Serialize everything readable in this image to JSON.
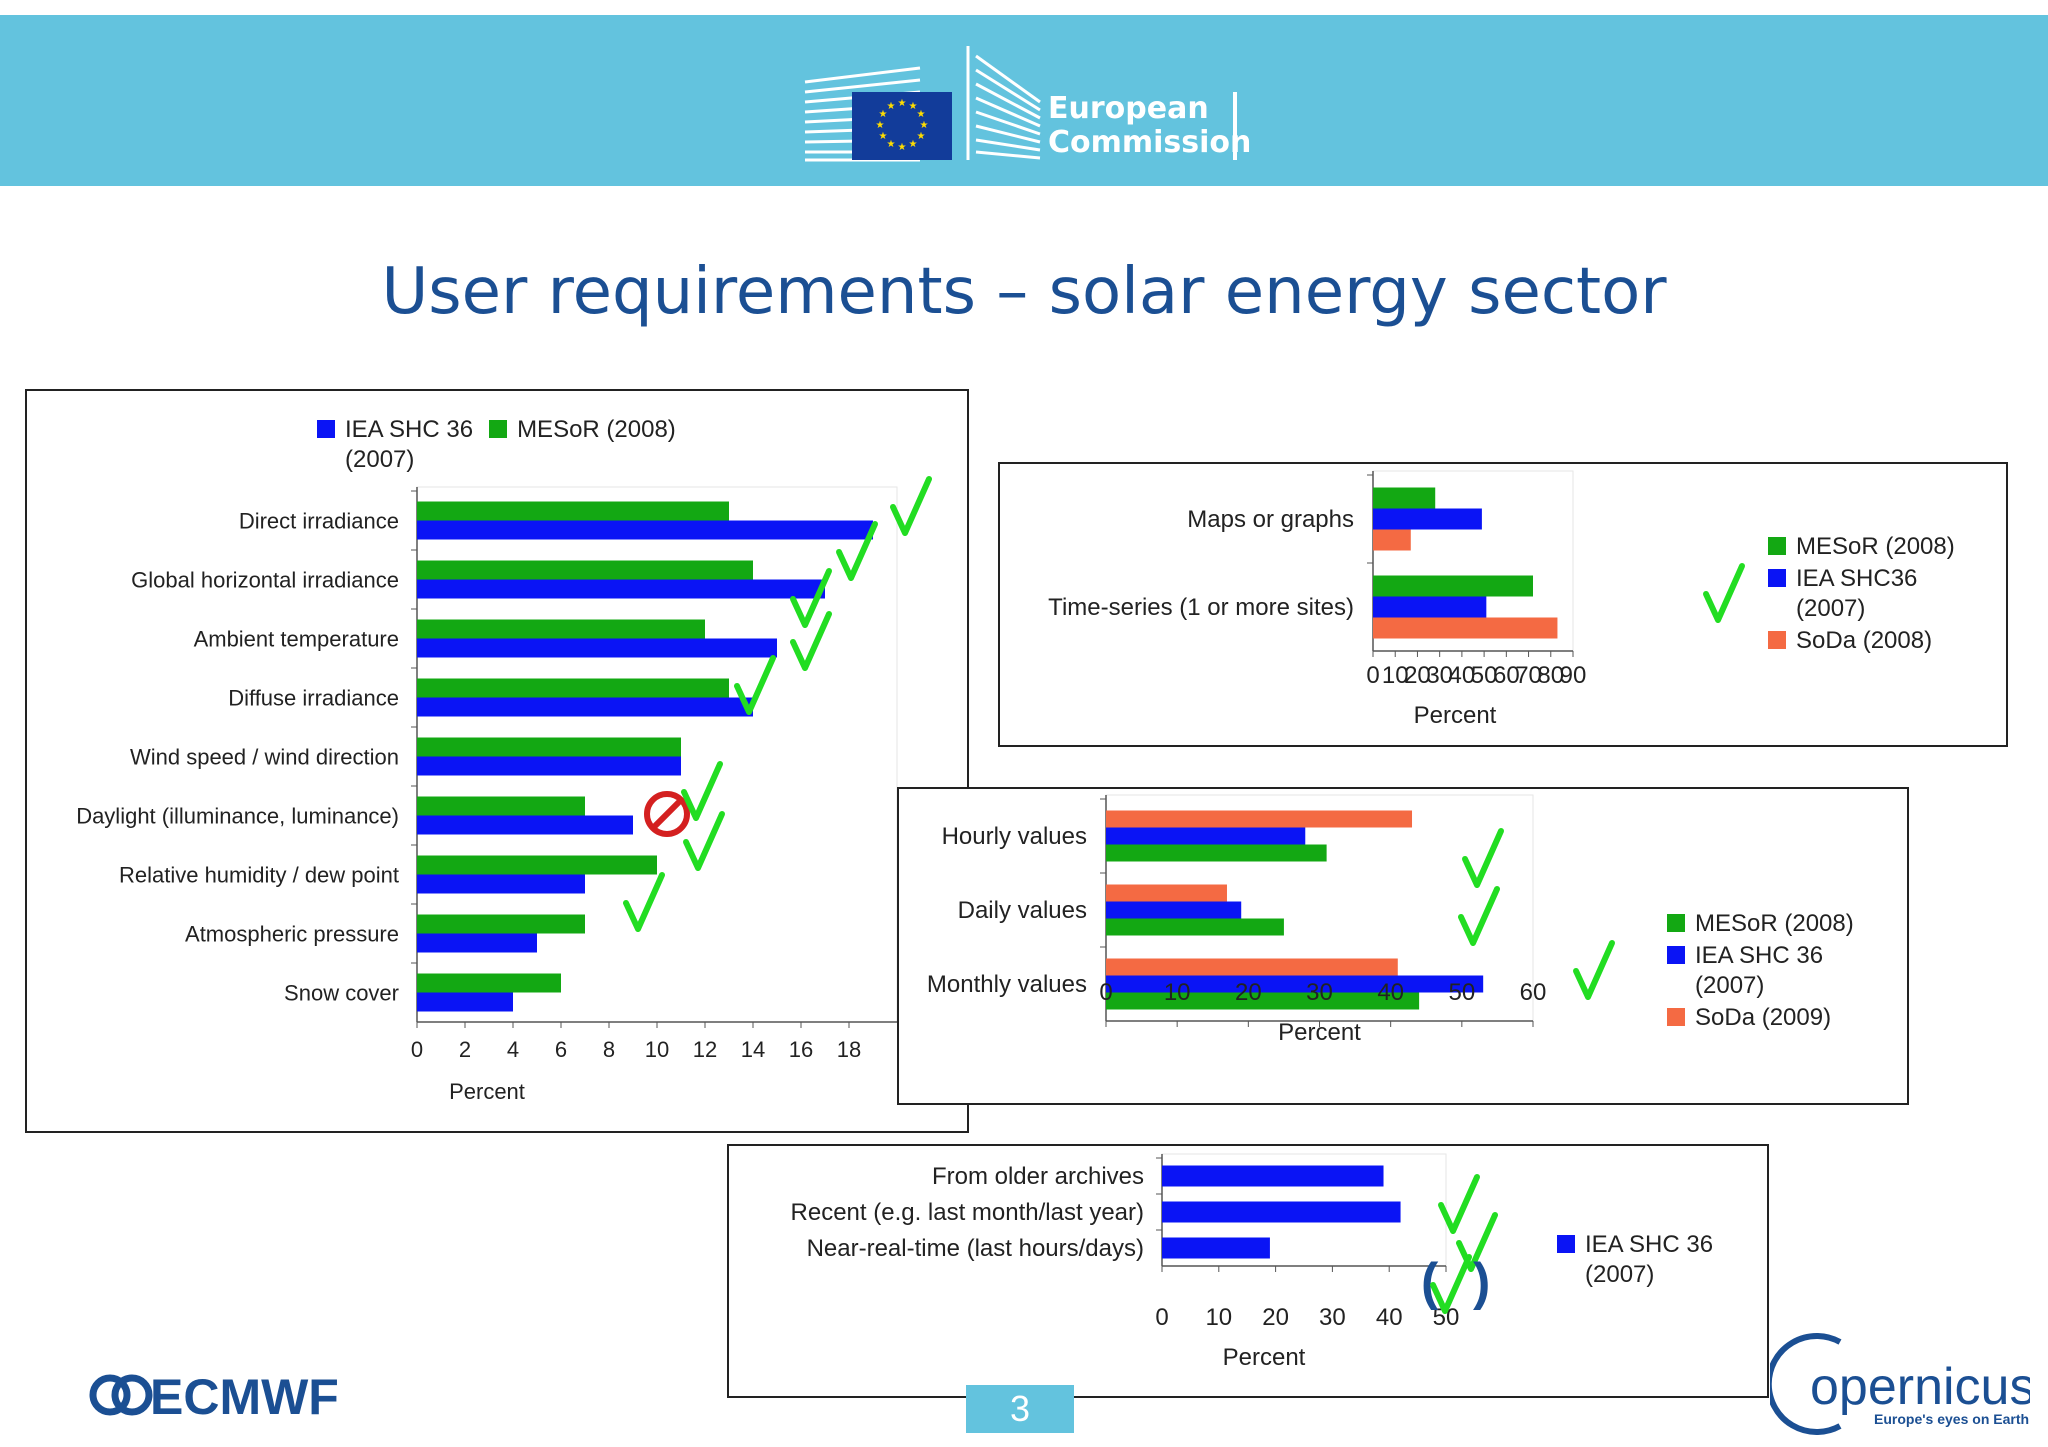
{
  "header": {
    "org_name_line1": "European",
    "org_name_line2": "Commission",
    "banner_color": "#63c3de"
  },
  "slide": {
    "title": "User requirements – solar energy sector",
    "page_number": "3"
  },
  "logos": {
    "left": "ECMWF",
    "right_name": "opernicus",
    "right_tagline": "Europe's eyes on Earth"
  },
  "colors": {
    "green": "#13a813",
    "blue": "#0a14f5",
    "orange": "#f46a43",
    "check": "#22dd22",
    "title": "#1b4f93"
  },
  "icons": {
    "check": "check-icon",
    "prohibited": "prohibited-icon"
  },
  "chart_data": [
    {
      "id": "parameters",
      "type": "bar",
      "orientation": "horizontal",
      "xlabel": "Percent",
      "xlim": [
        0,
        20
      ],
      "xticks": [
        "0",
        "2",
        "4",
        "6",
        "8",
        "10",
        "12",
        "14",
        "16",
        "18"
      ],
      "categories": [
        "Direct irradiance",
        "Global horizontal irradiance",
        "Ambient temperature",
        "Diffuse irradiance",
        "Wind speed / wind direction",
        "Daylight (illuminance, luminance)",
        "Relative humidity / dew point",
        "Atmospheric pressure",
        "Snow cover"
      ],
      "series": [
        {
          "name": "MESoR (2008)",
          "color": "#13a813",
          "values": [
            13,
            14,
            12,
            13,
            11,
            7,
            10,
            7,
            6
          ]
        },
        {
          "name": "IEA SHC 36\n(2007)",
          "color": "#0a14f5",
          "values": [
            19,
            17,
            15,
            14,
            11,
            9,
            7,
            5,
            4
          ]
        }
      ],
      "legend": [
        {
          "name": "IEA SHC 36\n(2007)",
          "color": "#0a14f5"
        },
        {
          "name": "MESoR (2008)",
          "color": "#13a813"
        }
      ],
      "marks": [
        "check",
        "check",
        "check",
        "check",
        "check",
        "prohibited",
        "check",
        "check",
        "check"
      ]
    },
    {
      "id": "format",
      "type": "bar",
      "orientation": "horizontal",
      "xlabel": "Percent",
      "xlim": [
        0,
        90
      ],
      "xticks": [
        "0",
        "10",
        "20",
        "30",
        "40",
        "50",
        "60",
        "70",
        "80",
        "90"
      ],
      "categories": [
        "Maps or graphs",
        "Time-series (1 or more sites)"
      ],
      "series": [
        {
          "name": "MESoR (2008)",
          "color": "#13a813",
          "values": [
            28,
            72
          ]
        },
        {
          "name": "IEA SHC36\n(2007)",
          "color": "#0a14f5",
          "values": [
            49,
            51
          ]
        },
        {
          "name": "SoDa (2008)",
          "color": "#f46a43",
          "values": [
            17,
            83
          ]
        }
      ],
      "marks": [
        "",
        "check"
      ]
    },
    {
      "id": "resolution",
      "type": "bar",
      "orientation": "horizontal",
      "xlabel": "Percent",
      "xlim": [
        0,
        60
      ],
      "xticks": [
        "0",
        "10",
        "20",
        "30",
        "40",
        "50",
        "60"
      ],
      "categories": [
        "Hourly values",
        "Daily values",
        "Monthly values"
      ],
      "series": [
        {
          "name": "SoDa (2009)",
          "color": "#f46a43",
          "values": [
            43,
            17,
            41
          ]
        },
        {
          "name": "IEA SHC 36\n(2007)",
          "color": "#0a14f5",
          "values": [
            28,
            19,
            53
          ]
        },
        {
          "name": "MESoR (2008)",
          "color": "#13a813",
          "values": [
            31,
            25,
            44
          ]
        }
      ],
      "legend": [
        {
          "name": "MESoR (2008)",
          "color": "#13a813"
        },
        {
          "name": "IEA SHC 36\n(2007)",
          "color": "#0a14f5"
        },
        {
          "name": "SoDa (2009)",
          "color": "#f46a43"
        }
      ],
      "marks": [
        "check",
        "check",
        "check"
      ]
    },
    {
      "id": "timeliness",
      "type": "bar",
      "orientation": "horizontal",
      "xlabel": "Percent",
      "xlim": [
        0,
        50
      ],
      "xticks": [
        "0",
        "10",
        "20",
        "30",
        "40",
        "50"
      ],
      "categories": [
        "From older archives",
        "Recent (e.g. last month/last year)",
        "Near-real-time (last hours/days)"
      ],
      "series": [
        {
          "name": "IEA SHC 36\n(2007)",
          "color": "#0a14f5",
          "values": [
            39,
            42,
            19
          ]
        }
      ],
      "marks": [
        "check",
        "check",
        "(check)"
      ],
      "paren_open": "(",
      "paren_close": ")"
    }
  ]
}
